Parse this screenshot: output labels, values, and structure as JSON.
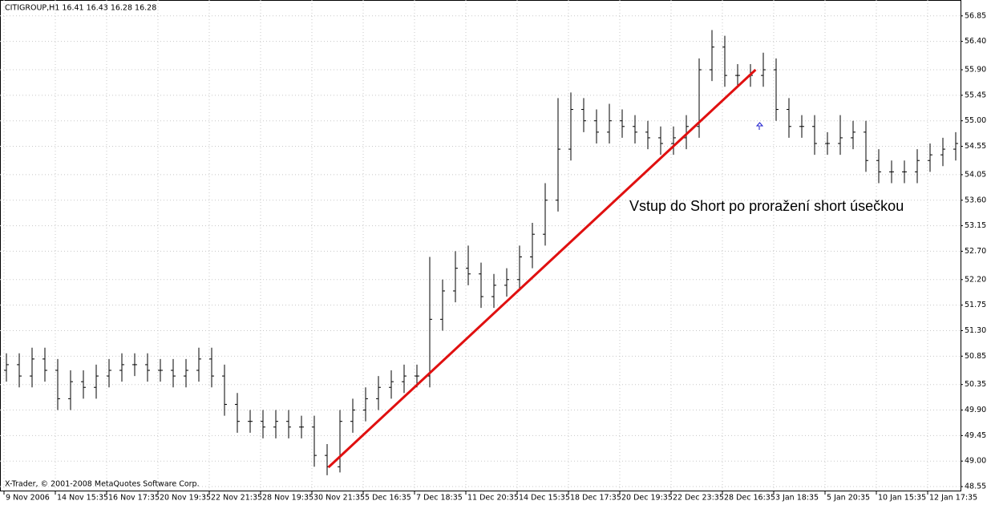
{
  "chart_data": {
    "type": "ohlc",
    "header": "CITIGROUP,H1  16.41 16.43 16.28 16.28",
    "footer": "X-Trader, © 2001-2008 MetaQuotes Software Corp.",
    "annotation": "Vstup do Short po proražení short úsečkou",
    "annotation_color": "#1a1acc",
    "grid": true,
    "color": "#000000",
    "categories": [
      "9 Nov 2006",
      null,
      null,
      null,
      "14 Nov 15:35",
      null,
      null,
      null,
      "16 Nov 17:35",
      null,
      null,
      null,
      "20 Nov 19:35",
      null,
      null,
      null,
      "22 Nov 21:35",
      null,
      null,
      null,
      "28 Nov 19:35",
      null,
      null,
      null,
      "30 Nov 21:35",
      null,
      null,
      null,
      "5 Dec 16:35",
      null,
      null,
      null,
      "7 Dec 18:35",
      null,
      null,
      null,
      "11 Dec 20:35",
      null,
      null,
      null,
      "14 Dec 15:35",
      null,
      null,
      null,
      "18 Dec 17:35",
      null,
      null,
      null,
      "20 Dec 19:35",
      null,
      null,
      null,
      "22 Dec 23:35",
      null,
      null,
      null,
      "28 Dec 16:35",
      null,
      null,
      null,
      "3 Jan 18:35",
      null,
      null,
      null,
      "5 Jan 20:35",
      null,
      null,
      null,
      "10 Jan 15:35",
      null,
      null,
      null,
      "12 Jan 17:35",
      null,
      null
    ],
    "open": [
      50.6,
      50.7,
      50.5,
      50.8,
      50.6,
      50.1,
      50.4,
      50.3,
      50.5,
      50.6,
      50.7,
      50.7,
      50.6,
      50.6,
      50.5,
      50.6,
      50.8,
      50.5,
      50.0,
      49.7,
      49.7,
      49.6,
      49.7,
      49.6,
      49.6,
      49.1,
      48.9,
      49.7,
      49.9,
      50.1,
      50.3,
      50.4,
      50.5,
      50.5,
      51.5,
      52.0,
      52.4,
      52.3,
      51.9,
      52.1,
      52.2,
      52.6,
      53.0,
      53.6,
      54.5,
      55.2,
      55.0,
      54.8,
      55.0,
      54.9,
      54.8,
      54.7,
      54.6,
      54.7,
      54.9,
      55.9,
      56.3,
      55.8,
      55.8,
      55.8,
      55.9,
      55.2,
      54.9,
      54.9,
      54.6,
      54.6,
      54.7,
      54.8,
      54.3,
      54.1,
      54.1,
      54.1,
      54.3,
      54.4,
      54.5
    ],
    "high": [
      50.9,
      50.9,
      51.0,
      51.0,
      50.8,
      50.6,
      50.6,
      50.7,
      50.8,
      50.9,
      50.9,
      50.9,
      50.8,
      50.8,
      50.8,
      51.0,
      51.0,
      50.7,
      50.2,
      49.9,
      49.9,
      49.9,
      49.9,
      49.8,
      49.8,
      49.3,
      49.9,
      50.1,
      50.3,
      50.5,
      50.6,
      50.7,
      50.7,
      52.6,
      52.2,
      52.7,
      52.8,
      52.5,
      52.3,
      52.4,
      52.8,
      53.2,
      53.9,
      55.4,
      55.5,
      55.4,
      55.2,
      55.3,
      55.2,
      55.1,
      55.0,
      54.9,
      54.9,
      55.1,
      56.1,
      56.6,
      56.5,
      56.0,
      56.0,
      56.2,
      56.1,
      55.4,
      55.1,
      55.1,
      54.8,
      55.1,
      55.0,
      55.0,
      54.5,
      54.3,
      54.3,
      54.5,
      54.6,
      54.7,
      54.8
    ],
    "low": [
      50.4,
      50.3,
      50.3,
      50.4,
      49.9,
      49.9,
      50.1,
      50.1,
      50.3,
      50.4,
      50.5,
      50.4,
      50.4,
      50.3,
      50.3,
      50.4,
      50.3,
      49.8,
      49.5,
      49.5,
      49.4,
      49.4,
      49.4,
      49.4,
      48.9,
      48.75,
      48.8,
      49.5,
      49.7,
      49.9,
      50.1,
      50.2,
      50.3,
      50.3,
      51.3,
      51.8,
      52.1,
      51.7,
      51.7,
      51.9,
      52.0,
      52.4,
      52.8,
      53.4,
      54.3,
      54.8,
      54.6,
      54.6,
      54.7,
      54.6,
      54.5,
      54.4,
      54.4,
      54.5,
      54.7,
      55.7,
      55.6,
      55.6,
      55.6,
      55.6,
      55.0,
      54.7,
      54.7,
      54.4,
      54.4,
      54.4,
      54.5,
      54.1,
      53.9,
      53.9,
      53.9,
      53.9,
      54.1,
      54.2,
      54.3
    ],
    "close": [
      50.7,
      50.5,
      50.8,
      50.6,
      50.1,
      50.4,
      50.3,
      50.5,
      50.6,
      50.7,
      50.7,
      50.6,
      50.6,
      50.5,
      50.6,
      50.8,
      50.5,
      50.0,
      49.7,
      49.7,
      49.6,
      49.7,
      49.6,
      49.6,
      49.1,
      48.9,
      49.7,
      49.9,
      50.1,
      50.3,
      50.4,
      50.5,
      50.5,
      51.5,
      52.0,
      52.4,
      52.3,
      51.9,
      52.1,
      52.2,
      52.6,
      53.0,
      53.6,
      54.5,
      55.2,
      55.0,
      54.8,
      55.0,
      54.9,
      54.8,
      54.7,
      54.6,
      54.7,
      54.9,
      55.9,
      56.3,
      55.8,
      55.8,
      55.8,
      55.9,
      55.2,
      54.9,
      54.9,
      54.6,
      54.6,
      54.7,
      54.8,
      54.3,
      54.1,
      54.1,
      54.1,
      54.3,
      54.4,
      54.5,
      54.6
    ],
    "trendline": {
      "color": "#e01010",
      "x": [
        25.1,
        58.4
      ],
      "y": [
        48.89,
        55.9
      ]
    },
    "ylim": [
      48.48,
      57.13
    ],
    "yticks": [
      56.85,
      {
        "value": 56.4,
        "label": "56.40"
      },
      {
        "value": 55.9,
        "label": "55.90"
      },
      55.45,
      {
        "value": 55.0,
        "label": "55.00"
      },
      54.55,
      54.05,
      {
        "value": 53.6,
        "label": "53.60"
      },
      53.15,
      {
        "value": 52.7,
        "label": "52.70"
      },
      {
        "value": 52.2,
        "label": "52.20"
      },
      51.75,
      {
        "value": 51.3,
        "label": "51.30"
      },
      50.85,
      50.35,
      {
        "value": 49.9,
        "label": "49.90"
      },
      49.45,
      {
        "value": 49.0,
        "label": "49.00"
      },
      48.55
    ]
  }
}
